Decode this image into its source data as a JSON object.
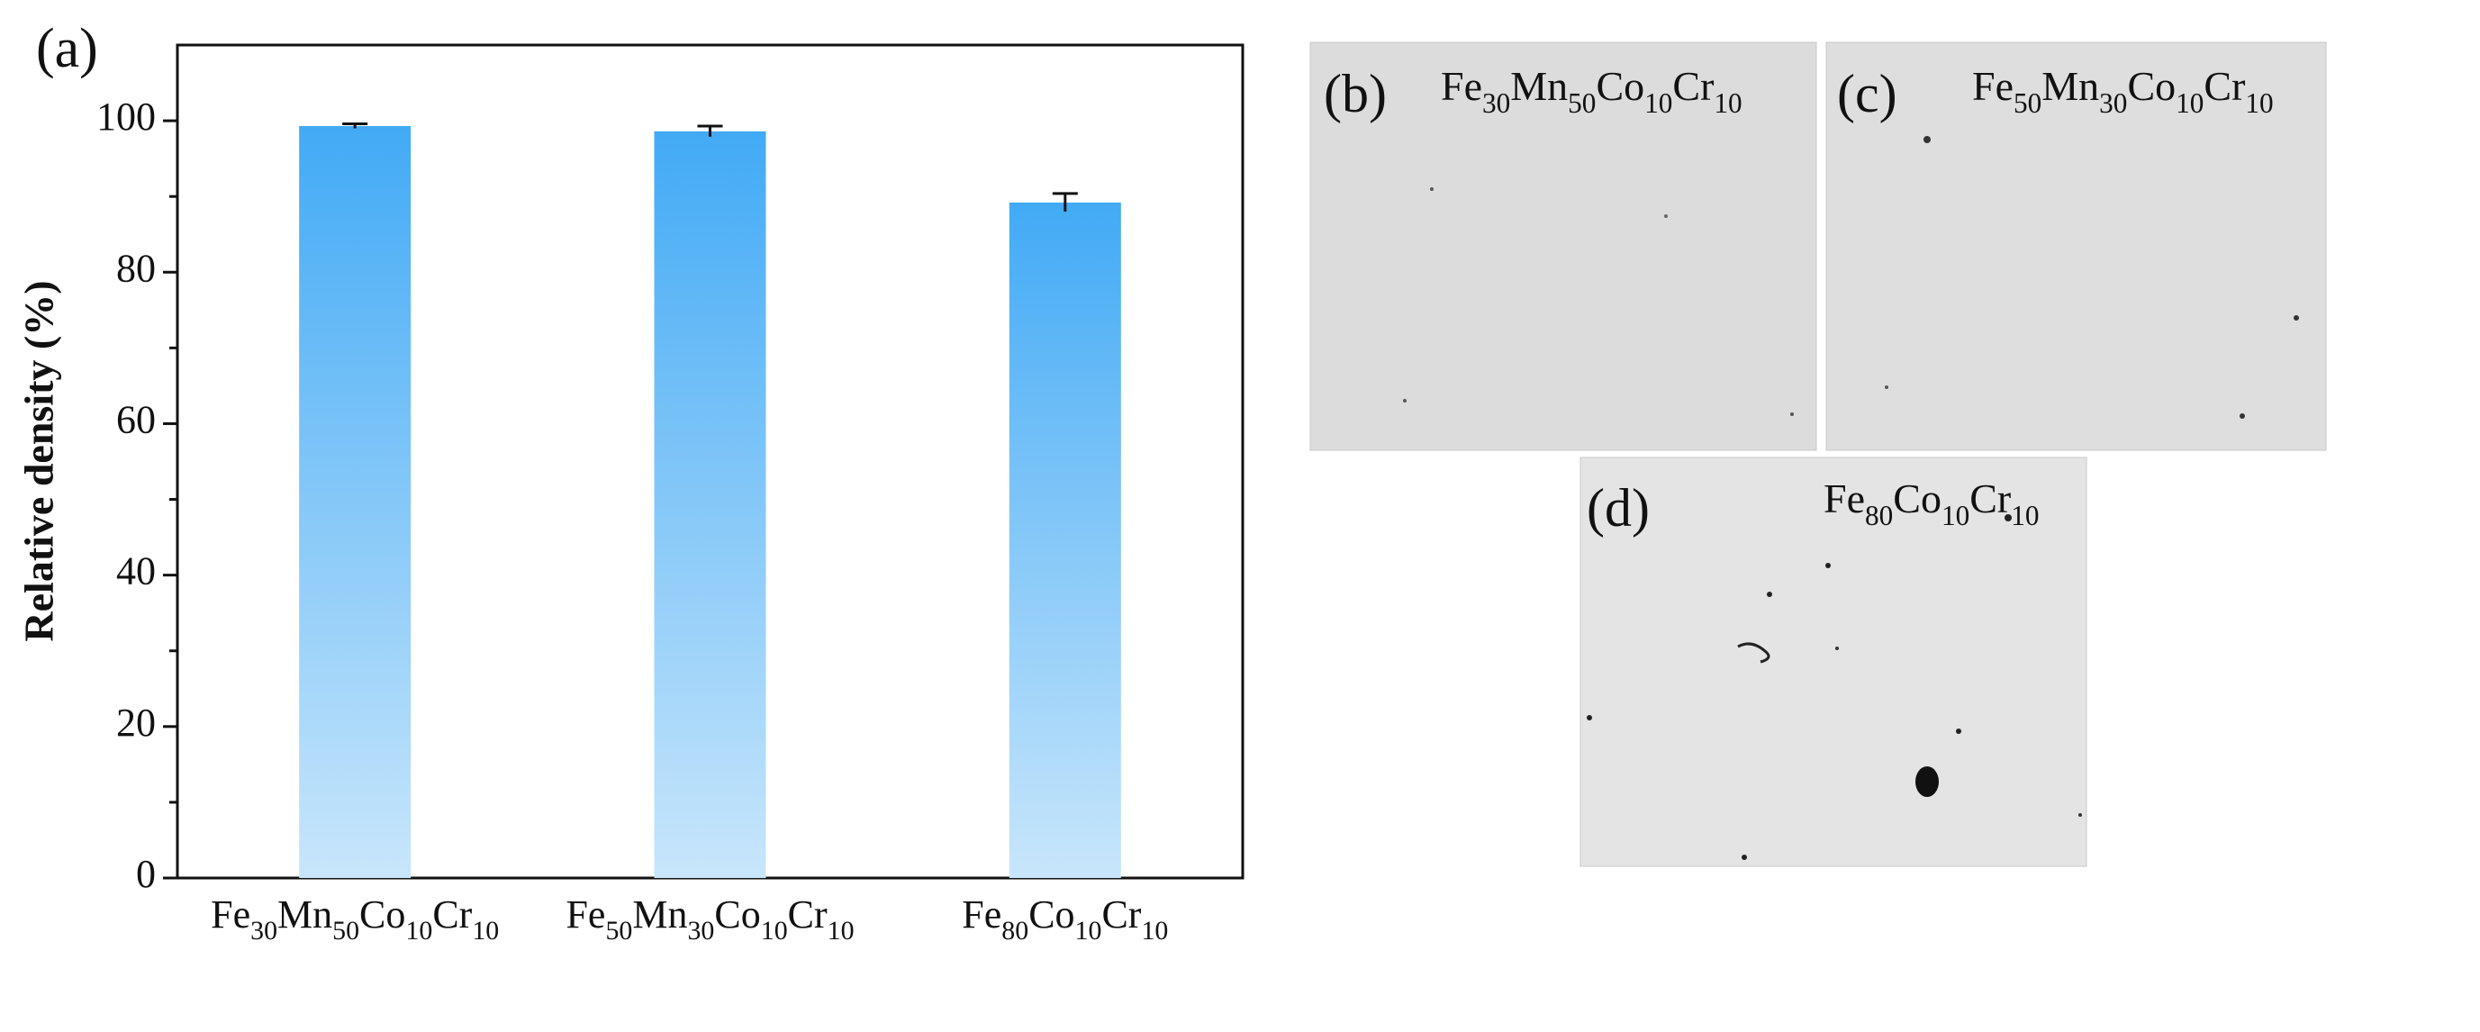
{
  "chart_data": {
    "type": "bar",
    "panel_label": "(a)",
    "ylabel": "Relative density (%)",
    "categories": [
      "Fe30Mn50Co10Cr10",
      "Fe50Mn30Co10Cr10",
      "Fe80Co10Cr10"
    ],
    "values": [
      99.3,
      98.6,
      89.2
    ],
    "errors": [
      0.3,
      0.7,
      1.2
    ],
    "color": "#42aaf5",
    "color_bottom": "#c8e6fb",
    "ylim": [
      0,
      110
    ],
    "yticks": [
      0,
      20,
      40,
      60,
      80,
      100
    ],
    "yminorticks": [
      10,
      30,
      50,
      70,
      90
    ]
  },
  "micrographs": [
    {
      "label": "(b)",
      "caption": "Fe30Mn50Co10Cr10"
    },
    {
      "label": "(c)",
      "caption": "Fe50Mn30Co10Cr10"
    },
    {
      "label": "(d)",
      "caption": "Fe80Co10Cr10"
    }
  ]
}
